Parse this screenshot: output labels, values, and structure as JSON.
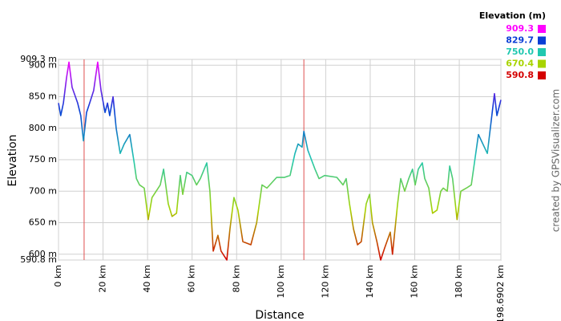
{
  "chart_data": {
    "type": "line",
    "xlabel": "Distance",
    "ylabel": "Elevation",
    "credit": "created by GPSVisualizer.com",
    "legend_title": "Elevation (m)",
    "color_scale": [
      {
        "value": 909.3,
        "label": "909.3",
        "color": "#ff00ff"
      },
      {
        "value": 829.7,
        "label": "829.7",
        "color": "#0a3ed6"
      },
      {
        "value": 750,
        "label": "750.0",
        "color": "#20c8b0"
      },
      {
        "value": 670.4,
        "label": "670.4",
        "color": "#a8d400"
      },
      {
        "value": 590.8,
        "label": "590.8",
        "color": "#d40000"
      }
    ],
    "xlim": [
      0,
      198.6902
    ],
    "ylim": [
      590.8,
      909.3
    ],
    "yticks": [
      {
        "value": 590.8,
        "label": "590.8 m"
      },
      {
        "value": 600,
        "label": "600 m"
      },
      {
        "value": 650,
        "label": "650 m"
      },
      {
        "value": 700,
        "label": "700 m"
      },
      {
        "value": 750,
        "label": "750 m"
      },
      {
        "value": 800,
        "label": "800 m"
      },
      {
        "value": 850,
        "label": "850 m"
      },
      {
        "value": 900,
        "label": "900 m"
      },
      {
        "value": 909.3,
        "label": "909.3 m"
      }
    ],
    "xticks": [
      {
        "value": 0,
        "label": "0 km"
      },
      {
        "value": 20,
        "label": "20 km"
      },
      {
        "value": 40,
        "label": "40 km"
      },
      {
        "value": 60,
        "label": "60 km"
      },
      {
        "value": 80,
        "label": "80 km"
      },
      {
        "value": 100,
        "label": "100 km"
      },
      {
        "value": 120,
        "label": "120 km"
      },
      {
        "value": 140,
        "label": "140 km"
      },
      {
        "value": 160,
        "label": "160 km"
      },
      {
        "value": 180,
        "label": "180 km"
      },
      {
        "value": 198.6902,
        "label": "198.6902 km"
      }
    ],
    "reference_lines_x": [
      11.5,
      110.2
    ],
    "reference_color": "#e05050",
    "grid": true,
    "x": [
      0,
      1,
      2.2,
      3.6,
      4.7,
      6.1,
      8.6,
      10,
      11.2,
      12.6,
      14,
      15.8,
      17.6,
      19.1,
      20.9,
      22,
      23,
      24.5,
      25.9,
      27.7,
      29.5,
      32,
      34,
      35,
      36.4,
      38.5,
      40.3,
      42,
      45.7,
      47.2,
      49.3,
      51,
      53,
      54.7,
      55.8,
      57.6,
      60,
      62,
      63.7,
      66.6,
      68,
      69.5,
      71.6,
      73,
      75.6,
      77,
      78.8,
      80.6,
      82.8,
      86.4,
      89,
      91.4,
      93.6,
      98,
      101.5,
      104,
      106.2,
      107.6,
      109.4,
      110.2,
      112,
      115.2,
      117,
      119.5,
      125,
      127.8,
      129.2,
      130.7,
      132.5,
      134.3,
      136,
      138.2,
      139.7,
      141,
      143,
      144.7,
      146.5,
      149,
      150,
      152.3,
      153.7,
      155.5,
      157.3,
      159,
      160.2,
      161.6,
      163.4,
      164.5,
      166.3,
      168,
      170,
      171.7,
      172.8,
      174.6,
      175.7,
      177,
      179,
      180.7,
      183.2,
      185.4,
      188.6,
      192.6,
      195.8,
      196.9,
      198.69
    ],
    "values": [
      840,
      820,
      840,
      880,
      905,
      865,
      840,
      820,
      780,
      825,
      840,
      860,
      905,
      860,
      825,
      840,
      820,
      850,
      800,
      760,
      775,
      790,
      745,
      720,
      710,
      705,
      655,
      690,
      710,
      735,
      680,
      660,
      665,
      725,
      695,
      730,
      725,
      710,
      720,
      745,
      700,
      605,
      630,
      605,
      590.8,
      640,
      690,
      670,
      620,
      615,
      650,
      710,
      705,
      722,
      722,
      725,
      760,
      775,
      770,
      795,
      765,
      735,
      720,
      725,
      722,
      710,
      720,
      680,
      640,
      615,
      620,
      680,
      695,
      650,
      620,
      590.8,
      610,
      635,
      600,
      680,
      720,
      700,
      720,
      735,
      710,
      735,
      745,
      720,
      705,
      665,
      670,
      700,
      705,
      700,
      740,
      720,
      655,
      700,
      705,
      710,
      790,
      760,
      855,
      820,
      845
    ]
  }
}
